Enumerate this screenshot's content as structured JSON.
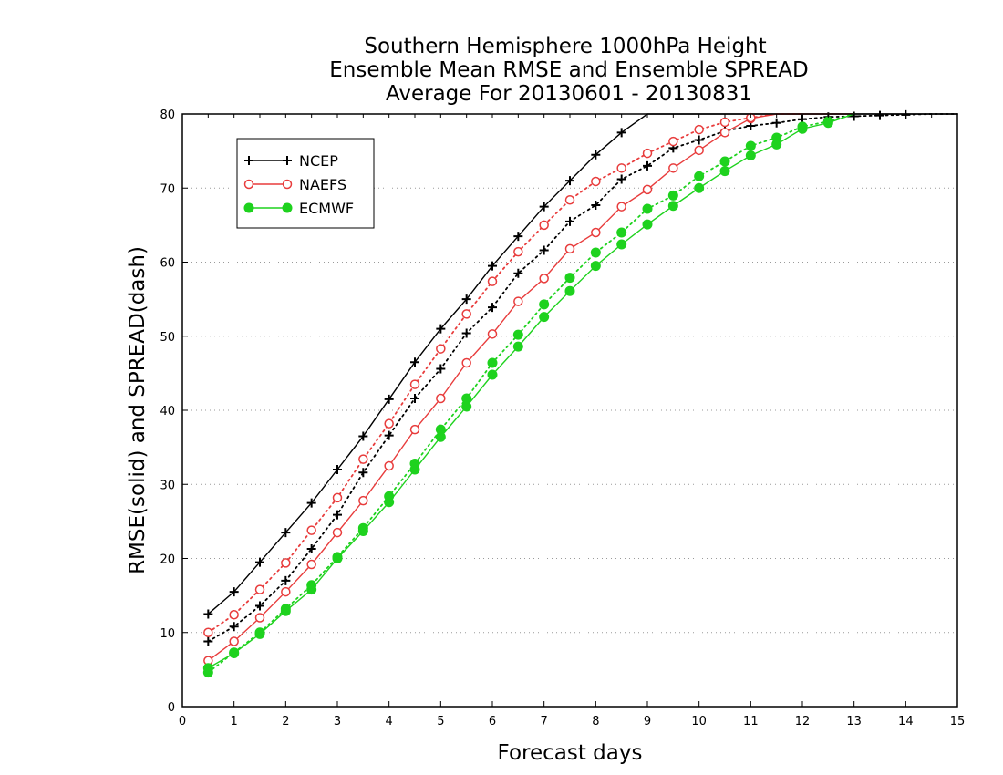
{
  "chart_data": {
    "type": "line",
    "title_lines": [
      "Southern Hemisphere 1000hPa Height",
      "Ensemble Mean RMSE and Ensemble SPREAD",
      "Average For 20130601 - 20130831"
    ],
    "xlabel": "Forecast days",
    "ylabel": "RMSE(solid) and SPREAD(dash)",
    "xlim": [
      0,
      15
    ],
    "ylim": [
      0,
      80
    ],
    "xticks": [
      0,
      1,
      2,
      3,
      4,
      5,
      6,
      7,
      8,
      9,
      10,
      11,
      12,
      13,
      14,
      15
    ],
    "yticks": [
      0,
      10,
      20,
      30,
      40,
      50,
      60,
      70,
      80
    ],
    "grid": "horizontal dotted",
    "legend": {
      "position": "upper-left",
      "entries": [
        {
          "name": "NCEP",
          "color": "#000000",
          "marker": "plus"
        },
        {
          "name": "NAEFS",
          "color": "#e83c3c",
          "marker": "open-circle"
        },
        {
          "name": "ECMWF",
          "color": "#1ed21e",
          "marker": "filled-circle"
        }
      ]
    },
    "series": [
      {
        "name": "NCEP",
        "kind": "RMSE",
        "style": "solid",
        "color": "#000000",
        "marker": "plus",
        "x": [
          0.5,
          1,
          1.5,
          2,
          2.5,
          3,
          3.5,
          4,
          4.5,
          5,
          5.5,
          6,
          6.5,
          7,
          7.5,
          8,
          8.5,
          9,
          9.5,
          10,
          10.5,
          11,
          11.5,
          12,
          12.5,
          13,
          13.5,
          14,
          14.5,
          15
        ],
        "y": [
          12.5,
          15.5,
          19.5,
          23.5,
          27.5,
          32.0,
          36.5,
          41.5,
          46.5,
          51.0,
          55.0,
          59.5,
          63.5,
          67.5,
          71.0,
          74.5,
          77.5,
          80,
          80,
          80,
          80,
          80,
          80,
          80,
          80,
          80,
          80,
          80,
          80,
          80
        ]
      },
      {
        "name": "NCEP",
        "kind": "SPREAD",
        "style": "dotted",
        "color": "#000000",
        "marker": "plus",
        "x": [
          0.5,
          1,
          1.5,
          2,
          2.5,
          3,
          3.5,
          4,
          4.5,
          5,
          5.5,
          6,
          6.5,
          7,
          7.5,
          8,
          8.5,
          9,
          9.5,
          10,
          10.5,
          11,
          11.5,
          12,
          12.5,
          13,
          13.5,
          14,
          14.5,
          15
        ],
        "y": [
          8.8,
          10.8,
          13.6,
          17.0,
          21.3,
          25.9,
          31.6,
          36.6,
          41.6,
          45.6,
          50.4,
          53.9,
          58.5,
          61.6,
          65.5,
          67.7,
          71.2,
          73.0,
          75.4,
          76.5,
          77.7,
          78.4,
          78.8,
          79.3,
          79.6,
          79.7,
          79.8,
          79.9,
          80,
          80
        ]
      },
      {
        "name": "NAEFS",
        "kind": "RMSE",
        "style": "solid",
        "color": "#e83c3c",
        "marker": "open-circle",
        "x": [
          0.5,
          1,
          1.5,
          2,
          2.5,
          3,
          3.5,
          4,
          4.5,
          5,
          5.5,
          6,
          6.5,
          7,
          7.5,
          8,
          8.5,
          9,
          9.5,
          10,
          10.5,
          11,
          11.5,
          12,
          12.5,
          13
        ],
        "y": [
          6.2,
          8.8,
          12.0,
          15.5,
          19.2,
          23.5,
          27.8,
          32.5,
          37.4,
          41.6,
          46.4,
          50.3,
          54.7,
          57.8,
          61.8,
          64.0,
          67.5,
          69.8,
          72.7,
          75.1,
          77.5,
          79.4,
          80,
          80,
          80,
          80
        ]
      },
      {
        "name": "NAEFS",
        "kind": "SPREAD",
        "style": "dotted",
        "color": "#e83c3c",
        "marker": "open-circle",
        "x": [
          0.5,
          1,
          1.5,
          2,
          2.5,
          3,
          3.5,
          4,
          4.5,
          5,
          5.5,
          6,
          6.5,
          7,
          7.5,
          8,
          8.5,
          9,
          9.5,
          10,
          10.5,
          11,
          11.5,
          12
        ],
        "y": [
          10.0,
          12.4,
          15.8,
          19.4,
          23.8,
          28.2,
          33.4,
          38.2,
          43.5,
          48.3,
          53.0,
          57.4,
          61.4,
          65.0,
          68.4,
          70.9,
          72.7,
          74.7,
          76.3,
          77.9,
          78.9,
          79.5,
          80,
          80
        ]
      },
      {
        "name": "ECMWF",
        "kind": "RMSE",
        "style": "solid",
        "color": "#1ed21e",
        "marker": "filled-circle",
        "x": [
          0.5,
          1,
          1.5,
          2,
          2.5,
          3,
          3.5,
          4,
          4.5,
          5,
          5.5,
          6,
          6.5,
          7,
          7.5,
          8,
          8.5,
          9,
          9.5,
          10,
          10.5,
          11,
          11.5,
          12,
          12.5,
          13
        ],
        "y": [
          5.2,
          7.2,
          9.8,
          12.9,
          15.8,
          20.0,
          23.7,
          27.6,
          32.0,
          36.4,
          40.5,
          44.8,
          48.6,
          52.6,
          56.1,
          59.5,
          62.4,
          65.1,
          67.6,
          70.0,
          72.3,
          74.4,
          75.9,
          78.0,
          78.8,
          80.0
        ]
      },
      {
        "name": "ECMWF",
        "kind": "SPREAD",
        "style": "dotted",
        "color": "#1ed21e",
        "marker": "filled-circle",
        "x": [
          0.5,
          1,
          1.5,
          2,
          2.5,
          3,
          3.5,
          4,
          4.5,
          5,
          5.5,
          6,
          6.5,
          7,
          7.5,
          8,
          8.5,
          9,
          9.5,
          10,
          10.5,
          11,
          11.5,
          12,
          12.5,
          13
        ],
        "y": [
          4.6,
          7.3,
          10.0,
          13.2,
          16.4,
          20.2,
          24.1,
          28.4,
          32.8,
          37.4,
          41.6,
          46.4,
          50.2,
          54.3,
          57.9,
          61.3,
          64.0,
          67.2,
          69.0,
          71.6,
          73.6,
          75.7,
          76.8,
          78.3,
          79.0,
          80.0
        ]
      }
    ]
  }
}
